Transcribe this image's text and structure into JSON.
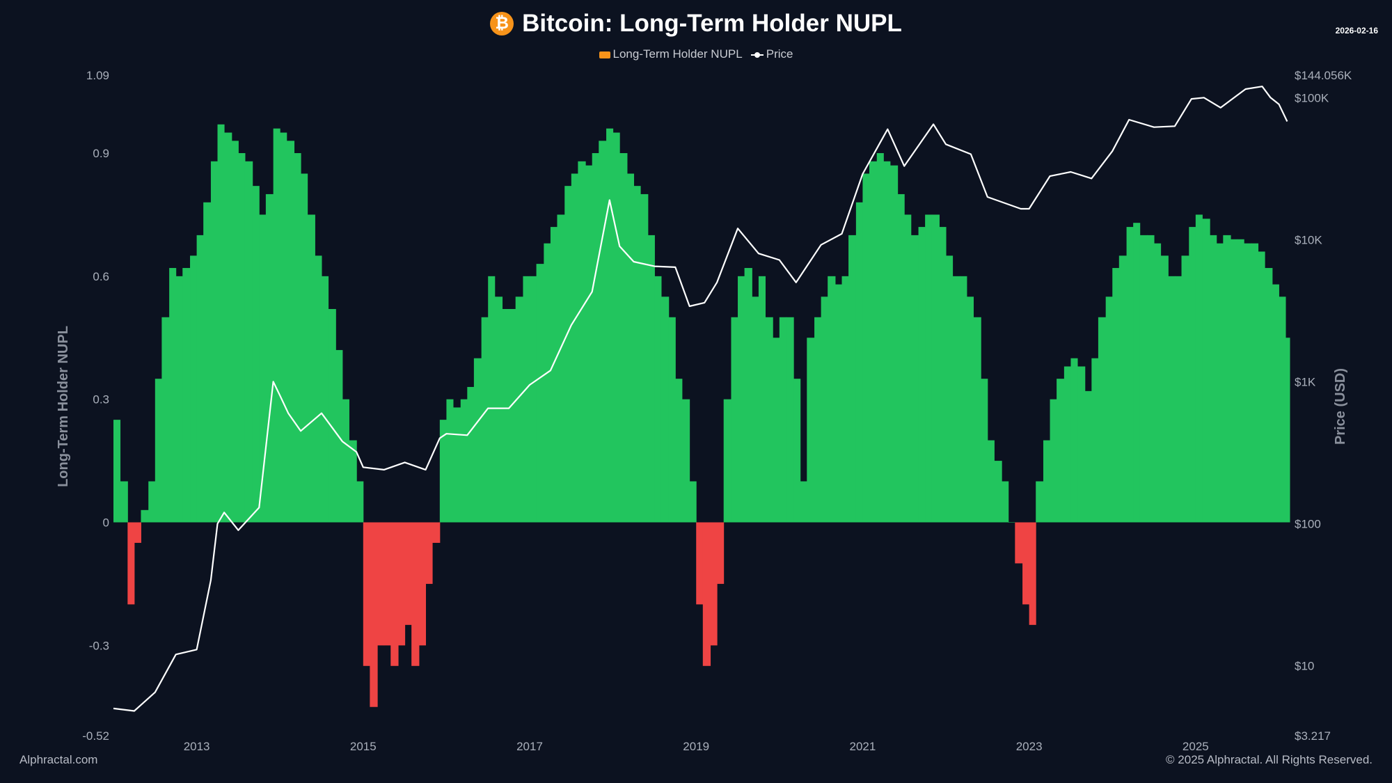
{
  "title": "Bitcoin: Long-Term Holder NUPL",
  "date": "2026-02-16",
  "icon": "bitcoin-icon",
  "footer_left": "Alphractal.com",
  "footer_right": "© 2025 Alphractal. All Rights Reserved.",
  "colors": {
    "positive": "#22c55e",
    "negative": "#ef4444",
    "price": "#ffffff",
    "legend_nupl": "#f7931a",
    "background": "#0c1220"
  },
  "chart_data": {
    "type": "bar",
    "title": "Bitcoin: Long-Term Holder NUPL",
    "legend": [
      "Long-Term Holder NUPL",
      "Price"
    ],
    "legend_placement": "top",
    "ylabel": "Long-Term Holder NUPL",
    "y2label": "Price (USD)",
    "ylim": [
      -0.52,
      1.09
    ],
    "y2lim": [
      3.217,
      144056
    ],
    "y2scale": "log",
    "xlim": [
      2012.0,
      2026.13
    ],
    "grid": false,
    "yticks": [
      "1.09",
      "0.9",
      "0.6",
      "0.3",
      "0",
      "-0.3",
      "-0.52"
    ],
    "ytick_values": [
      1.09,
      0.9,
      0.6,
      0.3,
      0,
      -0.3,
      -0.52
    ],
    "y2ticks": [
      "$144.056K",
      "$100K",
      "$10K",
      "$1K",
      "$100",
      "$10",
      "$3.217"
    ],
    "y2tick_values": [
      144056,
      100000,
      10000,
      1000,
      100,
      10,
      3.217
    ],
    "xticks": [
      "2013",
      "2015",
      "2017",
      "2019",
      "2021",
      "2023",
      "2025"
    ],
    "nupl": {
      "name": "Long-Term Holder NUPL",
      "x": [
        2012.0,
        2012.08,
        2012.17,
        2012.25,
        2012.33,
        2012.42,
        2012.5,
        2012.58,
        2012.67,
        2012.75,
        2012.83,
        2012.92,
        2013.0,
        2013.08,
        2013.17,
        2013.25,
        2013.33,
        2013.42,
        2013.5,
        2013.58,
        2013.67,
        2013.75,
        2013.83,
        2013.92,
        2014.0,
        2014.08,
        2014.17,
        2014.25,
        2014.33,
        2014.42,
        2014.5,
        2014.58,
        2014.67,
        2014.75,
        2014.83,
        2014.92,
        2015.0,
        2015.08,
        2015.17,
        2015.25,
        2015.33,
        2015.42,
        2015.5,
        2015.58,
        2015.67,
        2015.75,
        2015.83,
        2015.92,
        2016.0,
        2016.08,
        2016.17,
        2016.25,
        2016.33,
        2016.42,
        2016.5,
        2016.58,
        2016.67,
        2016.75,
        2016.83,
        2016.92,
        2017.0,
        2017.08,
        2017.17,
        2017.25,
        2017.33,
        2017.42,
        2017.5,
        2017.58,
        2017.67,
        2017.75,
        2017.83,
        2017.92,
        2018.0,
        2018.08,
        2018.17,
        2018.25,
        2018.33,
        2018.42,
        2018.5,
        2018.58,
        2018.67,
        2018.75,
        2018.83,
        2018.92,
        2019.0,
        2019.08,
        2019.17,
        2019.25,
        2019.33,
        2019.42,
        2019.5,
        2019.58,
        2019.67,
        2019.75,
        2019.83,
        2019.92,
        2020.0,
        2020.08,
        2020.17,
        2020.25,
        2020.33,
        2020.42,
        2020.5,
        2020.58,
        2020.67,
        2020.75,
        2020.83,
        2020.92,
        2021.0,
        2021.08,
        2021.17,
        2021.25,
        2021.33,
        2021.42,
        2021.5,
        2021.58,
        2021.67,
        2021.75,
        2021.83,
        2021.92,
        2022.0,
        2022.08,
        2022.17,
        2022.25,
        2022.33,
        2022.42,
        2022.5,
        2022.58,
        2022.67,
        2022.75,
        2022.83,
        2022.92,
        2023.0,
        2023.08,
        2023.17,
        2023.25,
        2023.33,
        2023.42,
        2023.5,
        2023.58,
        2023.67,
        2023.75,
        2023.83,
        2023.92,
        2024.0,
        2024.08,
        2024.17,
        2024.25,
        2024.33,
        2024.42,
        2024.5,
        2024.58,
        2024.67,
        2024.75,
        2024.83,
        2024.92,
        2025.0,
        2025.08,
        2025.17,
        2025.25,
        2025.33,
        2025.42,
        2025.5,
        2025.58,
        2025.67,
        2025.75,
        2025.83,
        2025.92,
        2026.0,
        2026.08
      ],
      "values": [
        0.25,
        0.1,
        -0.2,
        -0.05,
        0.03,
        0.1,
        0.35,
        0.5,
        0.62,
        0.6,
        0.62,
        0.65,
        0.7,
        0.78,
        0.88,
        0.97,
        0.95,
        0.93,
        0.9,
        0.88,
        0.82,
        0.75,
        0.8,
        0.96,
        0.95,
        0.93,
        0.9,
        0.85,
        0.75,
        0.65,
        0.6,
        0.52,
        0.42,
        0.3,
        0.2,
        0.1,
        -0.35,
        -0.45,
        -0.3,
        -0.3,
        -0.35,
        -0.3,
        -0.25,
        -0.35,
        -0.3,
        -0.15,
        -0.05,
        0.25,
        0.3,
        0.28,
        0.3,
        0.33,
        0.4,
        0.5,
        0.6,
        0.55,
        0.52,
        0.52,
        0.55,
        0.6,
        0.6,
        0.63,
        0.68,
        0.72,
        0.75,
        0.82,
        0.85,
        0.88,
        0.87,
        0.9,
        0.93,
        0.96,
        0.95,
        0.9,
        0.85,
        0.82,
        0.8,
        0.7,
        0.6,
        0.55,
        0.5,
        0.35,
        0.3,
        0.1,
        -0.2,
        -0.35,
        -0.3,
        -0.15,
        0.3,
        0.5,
        0.6,
        0.62,
        0.55,
        0.6,
        0.5,
        0.45,
        0.5,
        0.5,
        0.35,
        0.1,
        0.45,
        0.5,
        0.55,
        0.6,
        0.58,
        0.6,
        0.7,
        0.78,
        0.85,
        0.88,
        0.9,
        0.88,
        0.87,
        0.8,
        0.75,
        0.7,
        0.72,
        0.75,
        0.75,
        0.72,
        0.65,
        0.6,
        0.6,
        0.55,
        0.5,
        0.35,
        0.2,
        0.15,
        0.1,
        0.0,
        -0.1,
        -0.2,
        -0.25,
        0.1,
        0.2,
        0.3,
        0.35,
        0.38,
        0.4,
        0.38,
        0.32,
        0.4,
        0.5,
        0.55,
        0.62,
        0.65,
        0.72,
        0.73,
        0.7,
        0.7,
        0.68,
        0.65,
        0.6,
        0.6,
        0.65,
        0.72,
        0.75,
        0.74,
        0.7,
        0.68,
        0.7,
        0.69,
        0.69,
        0.68,
        0.68,
        0.66,
        0.62,
        0.58,
        0.55,
        0.45
      ]
    },
    "price": {
      "name": "Price",
      "x": [
        2012.0,
        2012.25,
        2012.5,
        2012.75,
        2013.0,
        2013.17,
        2013.25,
        2013.33,
        2013.5,
        2013.75,
        2013.92,
        2014.0,
        2014.1,
        2014.25,
        2014.5,
        2014.75,
        2014.92,
        2015.0,
        2015.25,
        2015.5,
        2015.75,
        2015.92,
        2016.0,
        2016.25,
        2016.5,
        2016.75,
        2017.0,
        2017.25,
        2017.5,
        2017.75,
        2017.96,
        2018.08,
        2018.25,
        2018.5,
        2018.75,
        2018.92,
        2019.1,
        2019.25,
        2019.5,
        2019.75,
        2020.0,
        2020.2,
        2020.5,
        2020.75,
        2021.0,
        2021.3,
        2021.5,
        2021.85,
        2022.0,
        2022.3,
        2022.5,
        2022.9,
        2023.0,
        2023.25,
        2023.5,
        2023.75,
        2024.0,
        2024.2,
        2024.5,
        2024.75,
        2024.95,
        2025.1,
        2025.3,
        2025.6,
        2025.8,
        2025.9,
        2026.0,
        2026.1
      ],
      "values": [
        5,
        4.8,
        6.5,
        12,
        13,
        40,
        100,
        120,
        90,
        130,
        1000,
        800,
        600,
        450,
        600,
        380,
        320,
        250,
        240,
        270,
        240,
        400,
        430,
        420,
        650,
        650,
        950,
        1200,
        2500,
        4300,
        19000,
        9000,
        7000,
        6500,
        6400,
        3400,
        3600,
        5000,
        12000,
        8000,
        7200,
        5000,
        9200,
        11000,
        29000,
        60000,
        33000,
        65000,
        47000,
        40000,
        20000,
        16500,
        16500,
        28000,
        30000,
        27000,
        42000,
        70000,
        62000,
        63000,
        98000,
        100000,
        85000,
        115000,
        120000,
        100000,
        90000,
        68000
      ]
    }
  }
}
